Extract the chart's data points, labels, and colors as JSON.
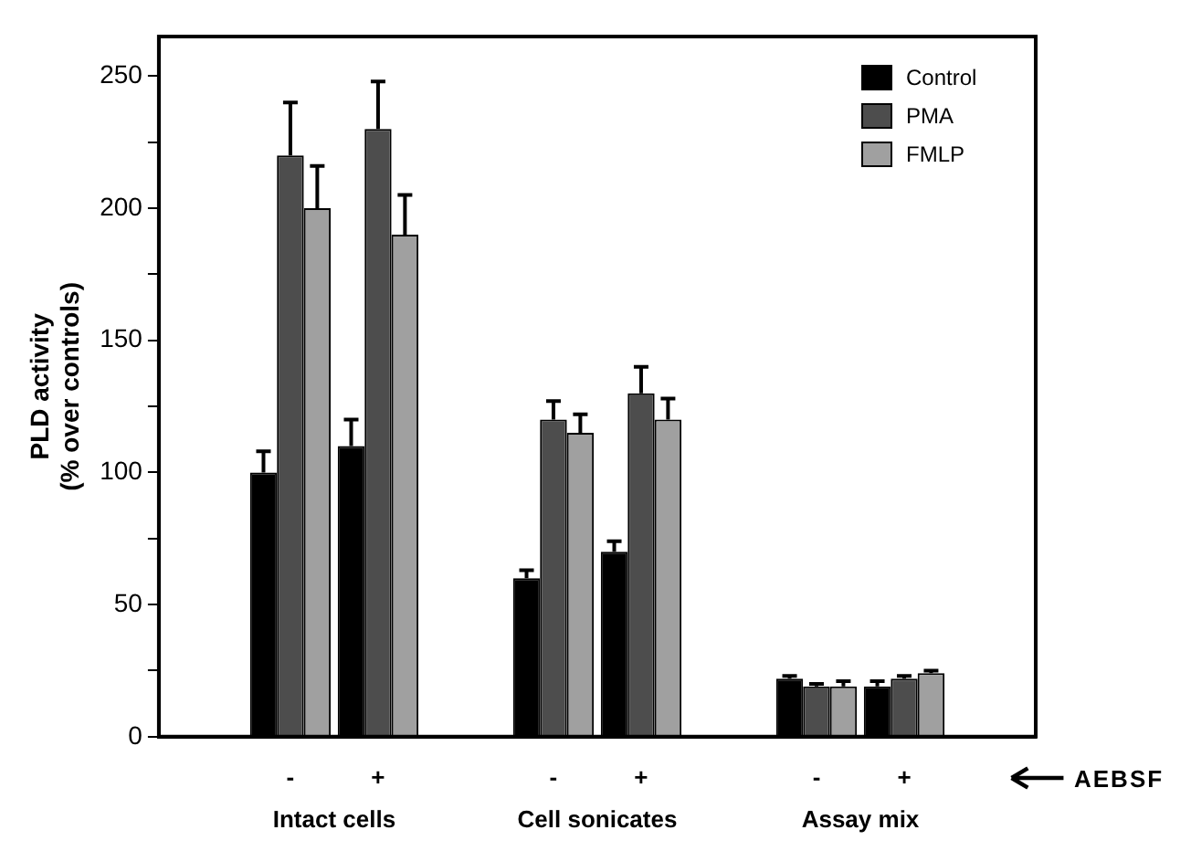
{
  "chart_data": {
    "type": "bar",
    "ylabel": "PLD activity\n(% over controls)",
    "categories": [
      null,
      "-",
      "+",
      null,
      "-",
      "+",
      null,
      "-",
      "+",
      null
    ],
    "series": [
      {
        "name": "Control",
        "color": "#000000",
        "values": [
          null,
          100,
          110,
          null,
          60,
          70,
          null,
          22,
          19,
          null
        ],
        "errors": [
          null,
          [
            100,
            108
          ],
          [
            110,
            120
          ],
          null,
          [
            60,
            63
          ],
          [
            70,
            74
          ],
          null,
          [
            22,
            23
          ],
          [
            19,
            21
          ],
          null
        ]
      },
      {
        "name": "PMA",
        "color": "#4d4d4d",
        "values": [
          null,
          220,
          230,
          null,
          120,
          130,
          null,
          19,
          22,
          null
        ],
        "errors": [
          null,
          [
            220,
            240
          ],
          [
            230,
            248
          ],
          null,
          [
            120,
            127
          ],
          [
            130,
            140
          ],
          null,
          [
            19,
            20
          ],
          [
            22,
            23
          ],
          null
        ]
      },
      {
        "name": "FMLP",
        "color": "#a0a0a0",
        "values": [
          null,
          200,
          190,
          null,
          115,
          120,
          null,
          19,
          24,
          null
        ],
        "errors": [
          null,
          [
            200,
            216
          ],
          [
            190,
            205
          ],
          null,
          [
            115,
            122
          ],
          [
            120,
            128
          ],
          null,
          [
            19,
            21
          ],
          [
            24,
            25
          ],
          null
        ]
      }
    ],
    "annotations": [
      "Intact cells",
      "Cell sonicates",
      "Assay mix",
      "AEBSF"
    ],
    "ylim": [
      0,
      265
    ],
    "yticks": [
      0,
      {
        "value": 25,
        "label": null
      },
      50,
      {
        "value": 75,
        "label": null
      },
      100,
      {
        "value": 125,
        "label": null
      },
      150,
      {
        "value": 175,
        "label": null
      },
      200,
      {
        "value": 225,
        "label": null
      },
      250
    ],
    "grid": false,
    "legend": "top right"
  }
}
